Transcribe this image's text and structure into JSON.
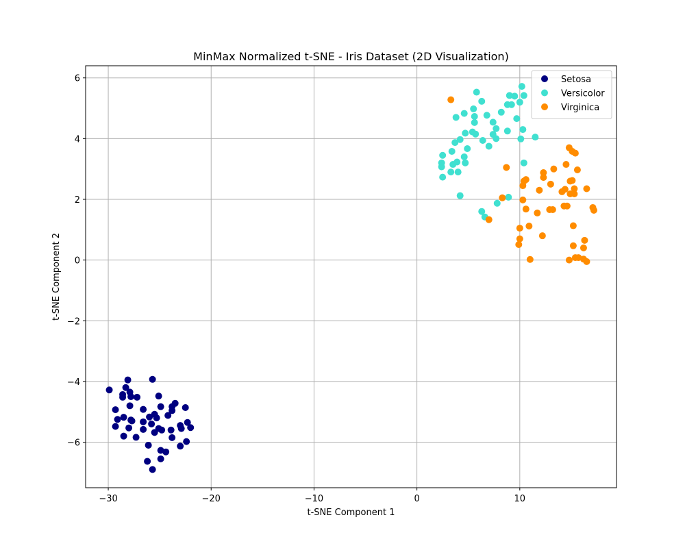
{
  "chart_data": {
    "type": "scatter",
    "title": "MinMax Normalized t-SNE - Iris Dataset (2D Visualization)",
    "xlabel": "t-SNE Component 1",
    "ylabel": "t-SNE Component 2",
    "xlim": [
      -32.2,
      19.4
    ],
    "ylim": [
      -7.5,
      6.4
    ],
    "x_ticks": [
      -30,
      -20,
      -10,
      0,
      10
    ],
    "x_tick_labels": [
      "−30",
      "−20",
      "−10",
      "0",
      "10"
    ],
    "y_ticks": [
      -6,
      -4,
      -2,
      0,
      2,
      4,
      6
    ],
    "y_tick_labels": [
      "−6",
      "−4",
      "−2",
      "0",
      "2",
      "4",
      "6"
    ],
    "grid": true,
    "legend_position": "top-right",
    "series": [
      {
        "name": "Setosa",
        "color": "#000080",
        "points": [
          [
            -29.9,
            -4.28
          ],
          [
            -28.1,
            -3.95
          ],
          [
            -25.7,
            -3.93
          ],
          [
            -28.3,
            -4.2
          ],
          [
            -27.9,
            -4.35
          ],
          [
            -28.6,
            -4.43
          ],
          [
            -28.6,
            -4.52
          ],
          [
            -27.8,
            -4.5
          ],
          [
            -27.2,
            -4.52
          ],
          [
            -25.1,
            -4.48
          ],
          [
            -23.5,
            -4.72
          ],
          [
            -23.8,
            -4.83
          ],
          [
            -22.5,
            -4.86
          ],
          [
            -27.9,
            -4.8
          ],
          [
            -24.9,
            -4.83
          ],
          [
            -29.3,
            -4.93
          ],
          [
            -26.6,
            -4.92
          ],
          [
            -23.8,
            -4.96
          ],
          [
            -25.5,
            -5.08
          ],
          [
            -24.2,
            -5.12
          ],
          [
            -26.0,
            -5.17
          ],
          [
            -25.3,
            -5.2
          ],
          [
            -28.5,
            -5.18
          ],
          [
            -29.1,
            -5.25
          ],
          [
            -27.8,
            -5.27
          ],
          [
            -27.7,
            -5.3
          ],
          [
            -26.6,
            -5.33
          ],
          [
            -25.8,
            -5.4
          ],
          [
            -22.3,
            -5.35
          ],
          [
            -23.0,
            -5.45
          ],
          [
            -29.3,
            -5.48
          ],
          [
            -28.0,
            -5.53
          ],
          [
            -26.6,
            -5.58
          ],
          [
            -25.1,
            -5.55
          ],
          [
            -24.8,
            -5.6
          ],
          [
            -23.9,
            -5.6
          ],
          [
            -22.9,
            -5.55
          ],
          [
            -22.0,
            -5.52
          ],
          [
            -25.5,
            -5.68
          ],
          [
            -28.5,
            -5.8
          ],
          [
            -27.3,
            -5.84
          ],
          [
            -23.8,
            -5.85
          ],
          [
            -22.4,
            -5.98
          ],
          [
            -26.1,
            -6.1
          ],
          [
            -23.0,
            -6.13
          ],
          [
            -24.9,
            -6.27
          ],
          [
            -24.4,
            -6.32
          ],
          [
            -24.9,
            -6.55
          ],
          [
            -26.2,
            -6.63
          ],
          [
            -25.7,
            -6.9
          ]
        ]
      },
      {
        "name": "Versicolor",
        "color": "#40E0D0",
        "points": [
          [
            10.2,
            5.72
          ],
          [
            5.8,
            5.53
          ],
          [
            9.0,
            5.42
          ],
          [
            9.5,
            5.4
          ],
          [
            10.4,
            5.42
          ],
          [
            6.3,
            5.23
          ],
          [
            10.0,
            5.2
          ],
          [
            8.8,
            5.12
          ],
          [
            9.2,
            5.12
          ],
          [
            5.5,
            4.98
          ],
          [
            4.6,
            4.83
          ],
          [
            8.2,
            4.87
          ],
          [
            5.6,
            4.73
          ],
          [
            6.8,
            4.77
          ],
          [
            3.8,
            4.7
          ],
          [
            9.7,
            4.66
          ],
          [
            7.4,
            4.54
          ],
          [
            5.6,
            4.53
          ],
          [
            7.7,
            4.33
          ],
          [
            10.3,
            4.3
          ],
          [
            5.4,
            4.22
          ],
          [
            4.7,
            4.18
          ],
          [
            8.8,
            4.25
          ],
          [
            5.7,
            4.15
          ],
          [
            7.4,
            4.14
          ],
          [
            11.5,
            4.05
          ],
          [
            4.2,
            3.97
          ],
          [
            6.4,
            3.94
          ],
          [
            7.7,
            4.0
          ],
          [
            10.1,
            3.99
          ],
          [
            3.7,
            3.87
          ],
          [
            7.0,
            3.75
          ],
          [
            4.9,
            3.67
          ],
          [
            3.4,
            3.58
          ],
          [
            2.5,
            3.45
          ],
          [
            4.6,
            3.4
          ],
          [
            3.5,
            3.15
          ],
          [
            3.9,
            3.23
          ],
          [
            2.4,
            3.2
          ],
          [
            2.4,
            3.07
          ],
          [
            4.7,
            3.2
          ],
          [
            10.4,
            3.2
          ],
          [
            3.3,
            2.9
          ],
          [
            4.0,
            2.9
          ],
          [
            2.5,
            2.73
          ],
          [
            4.2,
            2.12
          ],
          [
            8.9,
            2.07
          ],
          [
            7.8,
            1.87
          ],
          [
            6.3,
            1.6
          ],
          [
            6.6,
            1.42
          ]
        ]
      },
      {
        "name": "Virginica",
        "color": "#FF8C00",
        "points": [
          [
            3.3,
            5.28
          ],
          [
            14.8,
            3.7
          ],
          [
            15.1,
            3.58
          ],
          [
            15.4,
            3.52
          ],
          [
            14.5,
            3.15
          ],
          [
            8.7,
            3.05
          ],
          [
            13.3,
            3.0
          ],
          [
            15.6,
            2.97
          ],
          [
            12.3,
            2.88
          ],
          [
            12.3,
            2.72
          ],
          [
            10.4,
            2.6
          ],
          [
            10.6,
            2.65
          ],
          [
            14.9,
            2.6
          ],
          [
            15.1,
            2.62
          ],
          [
            13.0,
            2.5
          ],
          [
            10.3,
            2.45
          ],
          [
            15.3,
            2.35
          ],
          [
            16.5,
            2.35
          ],
          [
            14.4,
            2.33
          ],
          [
            11.9,
            2.3
          ],
          [
            14.1,
            2.25
          ],
          [
            14.9,
            2.18
          ],
          [
            15.3,
            2.18
          ],
          [
            8.3,
            2.05
          ],
          [
            10.3,
            1.98
          ],
          [
            14.3,
            1.78
          ],
          [
            14.6,
            1.78
          ],
          [
            10.6,
            1.68
          ],
          [
            12.9,
            1.66
          ],
          [
            13.2,
            1.66
          ],
          [
            17.1,
            1.73
          ],
          [
            17.2,
            1.64
          ],
          [
            11.7,
            1.55
          ],
          [
            7.0,
            1.33
          ],
          [
            10.9,
            1.12
          ],
          [
            15.2,
            1.13
          ],
          [
            10.0,
            1.05
          ],
          [
            12.2,
            0.8
          ],
          [
            10.0,
            0.7
          ],
          [
            16.3,
            0.65
          ],
          [
            9.9,
            0.51
          ],
          [
            15.2,
            0.47
          ],
          [
            16.2,
            0.4
          ],
          [
            15.4,
            0.08
          ],
          [
            15.7,
            0.08
          ],
          [
            16.2,
            0.03
          ],
          [
            11.0,
            0.02
          ],
          [
            14.8,
            0.0
          ],
          [
            16.5,
            -0.05
          ]
        ]
      }
    ]
  }
}
